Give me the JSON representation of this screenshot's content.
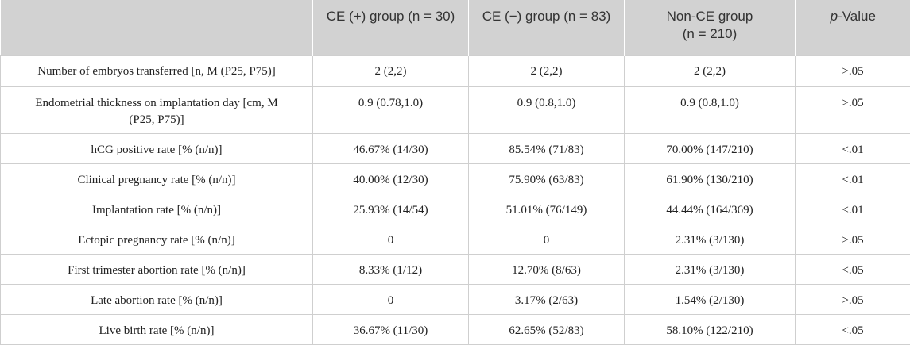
{
  "columns": [
    {
      "label": ""
    },
    {
      "label": "CE (+) group (n = 30)"
    },
    {
      "label": "CE (−) group (n = 83)"
    },
    {
      "label": "Non-CE group (n = 210)"
    },
    {
      "label_italic": "p",
      "label_rest": "-Value"
    }
  ],
  "rows": [
    {
      "label": "Number of embryos transferred [n, M (P25, P75)]",
      "ce_pos": "2 (2,2)",
      "ce_neg": "2 (2,2)",
      "non_ce": "2 (2,2)",
      "p_value": ">.05"
    },
    {
      "label": "Endometrial thickness on implantation day [cm, M (P25, P75)]",
      "ce_pos": "0.9 (0.78,1.0)",
      "ce_neg": "0.9 (0.8,1.0)",
      "non_ce": "0.9 (0.8,1.0)",
      "p_value": ">.05"
    },
    {
      "label": "hCG positive rate [% (n/n)]",
      "ce_pos": "46.67% (14/30)",
      "ce_neg": "85.54% (71/83)",
      "non_ce": "70.00% (147/210)",
      "p_value": "<.01"
    },
    {
      "label": "Clinical pregnancy rate [% (n/n)]",
      "ce_pos": "40.00% (12/30)",
      "ce_neg": "75.90% (63/83)",
      "non_ce": "61.90% (130/210)",
      "p_value": "<.01"
    },
    {
      "label": "Implantation rate [% (n/n)]",
      "ce_pos": "25.93% (14/54)",
      "ce_neg": "51.01% (76/149)",
      "non_ce": "44.44% (164/369)",
      "p_value": "<.01"
    },
    {
      "label": "Ectopic pregnancy rate [% (n/n)]",
      "ce_pos": "0",
      "ce_neg": "0",
      "non_ce": "2.31% (3/130)",
      "p_value": ">.05"
    },
    {
      "label": "First trimester abortion rate [% (n/n)]",
      "ce_pos": "8.33% (1/12)",
      "ce_neg": "12.70% (8/63)",
      "non_ce": "2.31% (3/130)",
      "p_value": "<.05"
    },
    {
      "label": "Late abortion rate [% (n/n)]",
      "ce_pos": "0",
      "ce_neg": "3.17% (2/63)",
      "non_ce": "1.54% (2/130)",
      "p_value": ">.05"
    },
    {
      "label": "Live birth rate [% (n/n)]",
      "ce_pos": "36.67% (11/30)",
      "ce_neg": "62.65% (52/83)",
      "non_ce": "58.10% (122/210)",
      "p_value": "<.05"
    }
  ]
}
